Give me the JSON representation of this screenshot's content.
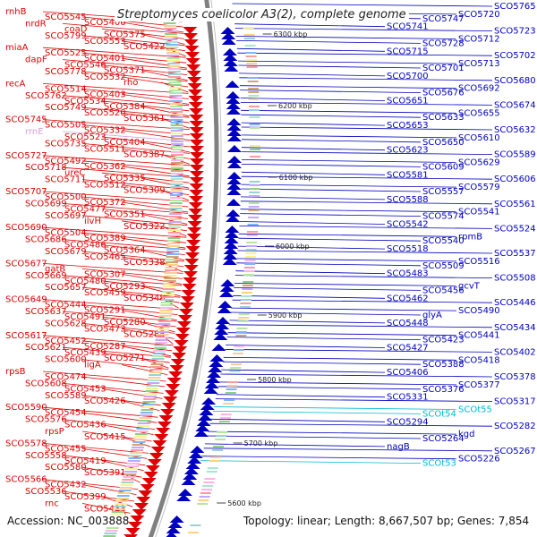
{
  "title": "Streptomyces coelicolor A3(2), complete genome",
  "footer": {
    "accession": "Accession: NC_003888",
    "summary": "Topology: linear; Length: 8,667,507 bp; Genes: 7,854"
  },
  "colors": {
    "forward": "#e00000",
    "reverse": "#0000c0",
    "rna": "#00b8d8",
    "rrna": "#d8a0d8",
    "axis": "#808080"
  },
  "ticks": [
    "6300 kbp",
    "6200 kbp",
    "6100 kbp",
    "6000 kbp",
    "5900 kbp",
    "5800 kbp",
    "5700 kbp",
    "5600 kbp"
  ],
  "left_labels": [
    "rnhB",
    "nrdR",
    "SCO5799",
    "miaA",
    "dapF",
    "SCO5778",
    "recA",
    "SCO5762",
    "SCO5749",
    "SCO5745",
    "rrnE",
    "SCO5735",
    "SCO5727",
    "SCO5718",
    "SCO5711",
    "SCO5707",
    "SCO5699",
    "SCO5697",
    "SCO5690",
    "SCO5686",
    "SCO5679",
    "SCO5677",
    "SCO5669",
    "SCO5657",
    "SCO5649",
    "SCO5637",
    "SCO5628",
    "SCO5617",
    "SCO5621",
    "SCO5600",
    "rpsB",
    "SCO5608",
    "SCO5589",
    "SCO5590",
    "SCO5576",
    "rpsP",
    "SCO5578",
    "SCO5558",
    "SCO5580",
    "SCO5566",
    "SCO5536",
    "rnc",
    "SCO5545",
    "coaD",
    "SCO5553",
    "SCO5525",
    "SCO5546",
    "SCO5532",
    "SCO5514",
    "SCO5534",
    "SCO5520",
    "SCO5505",
    "SCO5523",
    "SCO5511",
    "SCO5492",
    "ureC",
    "SCO5512",
    "SCO5500",
    "SCO5477",
    "ilvH",
    "SCO5504",
    "SCO5486",
    "SCO5465",
    "gatB",
    "SCO5480",
    "SCO5459",
    "SCO5444",
    "SCO5491",
    "SCO5473",
    "SCO5452",
    "SCO5439",
    "ligA",
    "SCO5474",
    "SCO5453",
    "SCO5426",
    "SCO5454",
    "SCO5436",
    "SCO5415",
    "SCO5455",
    "SCO5419",
    "SCO5391",
    "SCO5432",
    "SCO5399",
    "SCO5433",
    "SCO5400",
    "SCO5375",
    "SCO5422",
    "SCO5401",
    "SCO5371",
    "rho",
    "SCO5403",
    "SCO5384",
    "SCO5361",
    "SCO5332",
    "SCO5404",
    "SCO5387",
    "SCO5362",
    "SCO5335",
    "SCO5309",
    "SCO5372",
    "SCO5351",
    "SCO5322",
    "SCO5389",
    "SCO5364",
    "SCO5338",
    "SCO5307",
    "SCO5293",
    "SCO5348",
    "SCO5291",
    "SCO5280",
    "SCO5285",
    "SCO5287",
    "SCO5271"
  ],
  "right_labels": [
    "SCO5765",
    "SCO5720",
    "SCO5747",
    "SCO5741",
    "SCO5723",
    "SCO5712",
    "SCO5728",
    "SCO5715",
    "SCO5702",
    "SCO5713",
    "SCO5701",
    "SCO5700",
    "SCO5680",
    "SCO5692",
    "SCO5676",
    "SCO5651",
    "SCO5674",
    "SCO5655",
    "SCO5633",
    "SCO5653",
    "SCO5632",
    "SCO5610",
    "SCO5650",
    "SCO5623",
    "SCO5589",
    "SCO5629",
    "SCO5609",
    "SCO5581",
    "SCO5606",
    "SCO5579",
    "SCO5557",
    "SCO5588",
    "SCO5561",
    "SCO5541",
    "SCO5574",
    "SCO5542",
    "SCO5524",
    "rpmB",
    "SCO5540",
    "SCO5518",
    "SCO5537",
    "SCO5516",
    "SCO5509",
    "SCO5483",
    "SCO5508",
    "gcvT",
    "SCO5456",
    "SCO5462",
    "SCO5446",
    "SCO5490",
    "glyA",
    "SCO5448",
    "SCO5434",
    "SCO5441",
    "SCO5423",
    "SCO5427",
    "SCO5402",
    "SCO5418",
    "SCO5388",
    "SCO5406",
    "SCO5378",
    "SCO5377",
    "SCO5376",
    "SCO5331",
    "SCO5317",
    "SCOt55",
    "SCOt54",
    "SCO5294",
    "SCO5282",
    "kgd",
    "SCO5264",
    "nagB",
    "SCO5267",
    "SCO5226",
    "SCOt53"
  ],
  "rna_labels": [
    "SCOt55",
    "SCOt54",
    "SCOt53"
  ],
  "rrna_labels": [
    "rrnE"
  ]
}
